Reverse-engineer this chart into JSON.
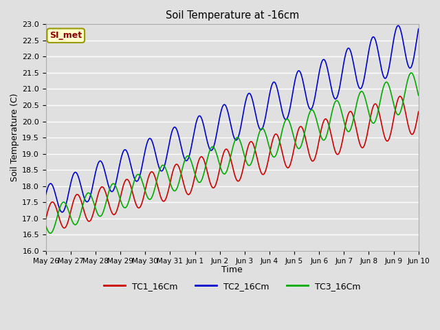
{
  "title": "Soil Temperature at -16cm",
  "xlabel": "Time",
  "ylabel": "Soil Temperature (C)",
  "ylim": [
    16.0,
    23.0
  ],
  "yticks": [
    16.0,
    16.5,
    17.0,
    17.5,
    18.0,
    18.5,
    19.0,
    19.5,
    20.0,
    20.5,
    21.0,
    21.5,
    22.0,
    22.5,
    23.0
  ],
  "bg_color": "#e0e0e0",
  "plot_bg_color": "#e0e0e0",
  "grid_color": "#ffffff",
  "legend_label": "SI_met",
  "legend_bg": "#ffffcc",
  "legend_border": "#999900",
  "line_colors": [
    "#cc0000",
    "#0000cc",
    "#00aa00"
  ],
  "series_labels": [
    "TC1_16Cm",
    "TC2_16Cm",
    "TC3_16Cm"
  ],
  "n_points": 720,
  "trend_start_tc1": 17.0,
  "trend_end_tc1": 20.3,
  "trend_start_tc2": 17.5,
  "trend_end_tc2": 22.5,
  "trend_start_tc3": 16.9,
  "trend_end_tc3": 21.0,
  "amp_start": 0.45,
  "amp_end": 0.65,
  "period_hours": 24,
  "phase_tc1": 0.0,
  "phase_tc2": 0.5,
  "phase_tc3": -2.8,
  "xtick_labels": [
    "May 26",
    "May 27",
    "May 28",
    "May 29",
    "May 30",
    "May 31",
    "Jun 1",
    "Jun 2",
    "Jun 3",
    "Jun 4",
    "Jun 5",
    "Jun 6",
    "Jun 7",
    "Jun 8",
    "Jun 9",
    "Jun 10"
  ],
  "xtick_positions": [
    0,
    24,
    48,
    72,
    96,
    120,
    144,
    168,
    192,
    216,
    240,
    264,
    288,
    312,
    336,
    360
  ]
}
